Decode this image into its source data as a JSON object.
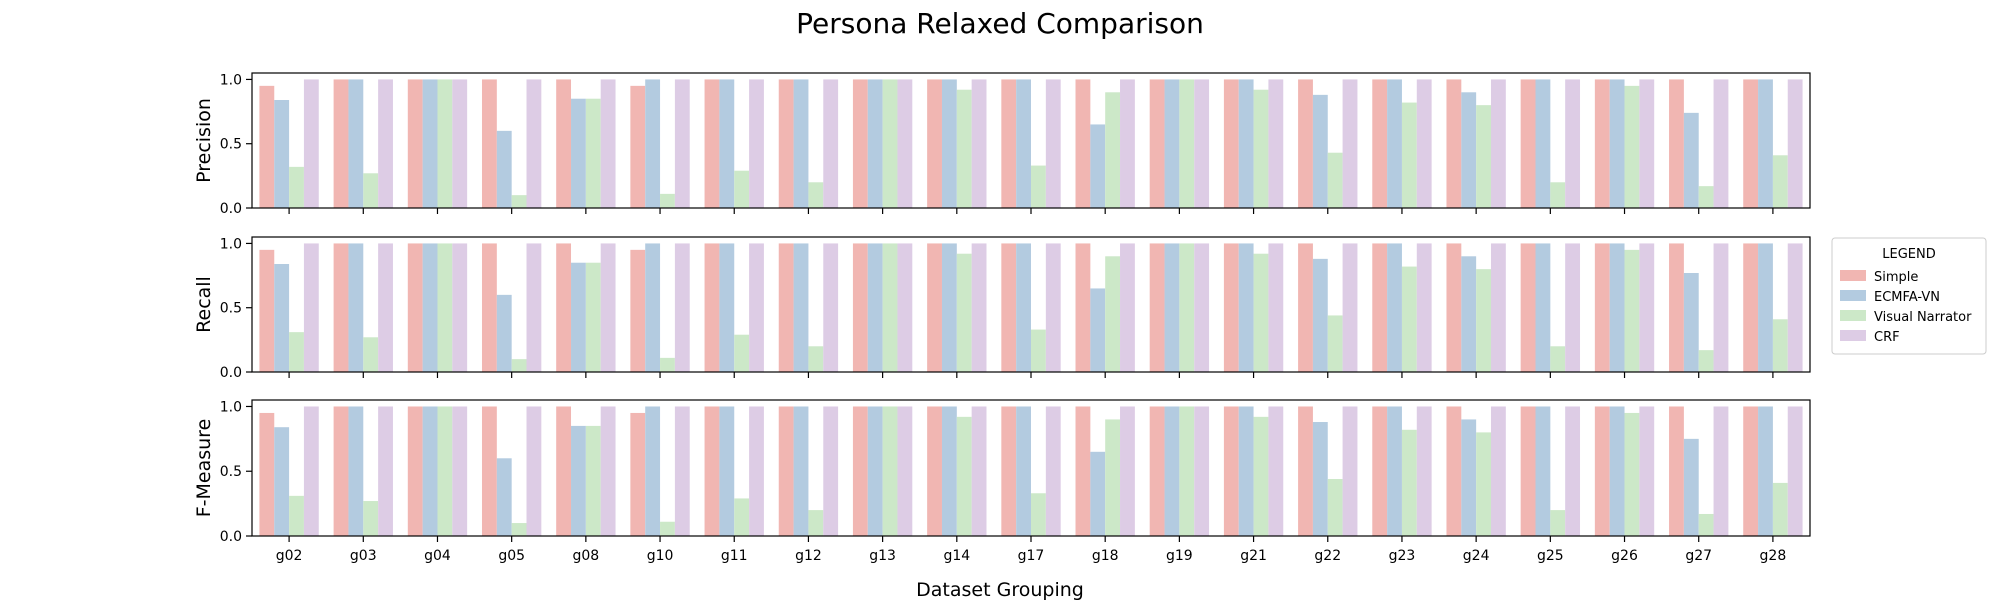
{
  "chart_data": {
    "type": "bar",
    "title": "Persona Relaxed Comparison",
    "xlabel": "Dataset Grouping",
    "categories": [
      "g02",
      "g03",
      "g04",
      "g05",
      "g08",
      "g10",
      "g11",
      "g12",
      "g13",
      "g14",
      "g17",
      "g18",
      "g19",
      "g21",
      "g22",
      "g23",
      "g24",
      "g25",
      "g26",
      "g27",
      "g28"
    ],
    "ylim": [
      0,
      1.05
    ],
    "yticks": [
      "0.0",
      "0.5",
      "1.0"
    ],
    "legend": {
      "title": "LEGEND",
      "placement": "right",
      "labels": [
        "Simple",
        "ECMFA-VN",
        "Visual Narrator",
        "CRF"
      ]
    },
    "colors": [
      "#f1b6b2",
      "#b3cbe0",
      "#cce8c8",
      "#ddcce5"
    ],
    "panels": [
      {
        "ylabel": "Precision",
        "series": [
          {
            "name": "Simple",
            "values": [
              0.95,
              1,
              1,
              1,
              1,
              0.95,
              1,
              1,
              1,
              1,
              1,
              1,
              1,
              1,
              1,
              1,
              1,
              1,
              1,
              1,
              1
            ]
          },
          {
            "name": "ECMFA-VN",
            "values": [
              0.84,
              1,
              1,
              0.6,
              0.85,
              1,
              1,
              1,
              1,
              1,
              1,
              0.65,
              1,
              1,
              0.88,
              1,
              0.9,
              1,
              1,
              0.74,
              1
            ]
          },
          {
            "name": "Visual Narrator",
            "values": [
              0.32,
              0.27,
              1,
              0.1,
              0.85,
              0.11,
              0.29,
              0.2,
              1,
              0.92,
              0.33,
              0.9,
              1,
              0.92,
              0.43,
              0.82,
              0.8,
              0.2,
              0.95,
              0.17,
              0.41
            ]
          },
          {
            "name": "CRF",
            "values": [
              1,
              1,
              1,
              1,
              1,
              1,
              1,
              1,
              1,
              1,
              1,
              1,
              1,
              1,
              1,
              1,
              1,
              1,
              1,
              1,
              1
            ]
          }
        ]
      },
      {
        "ylabel": "Recall",
        "series": [
          {
            "name": "Simple",
            "values": [
              0.95,
              1,
              1,
              1,
              1,
              0.95,
              1,
              1,
              1,
              1,
              1,
              1,
              1,
              1,
              1,
              1,
              1,
              1,
              1,
              1,
              1
            ]
          },
          {
            "name": "ECMFA-VN",
            "values": [
              0.84,
              1,
              1,
              0.6,
              0.85,
              1,
              1,
              1,
              1,
              1,
              1,
              0.65,
              1,
              1,
              0.88,
              1,
              0.9,
              1,
              1,
              0.77,
              1
            ]
          },
          {
            "name": "Visual Narrator",
            "values": [
              0.31,
              0.27,
              1,
              0.1,
              0.85,
              0.11,
              0.29,
              0.2,
              1,
              0.92,
              0.33,
              0.9,
              1,
              0.92,
              0.44,
              0.82,
              0.8,
              0.2,
              0.95,
              0.17,
              0.41
            ]
          },
          {
            "name": "CRF",
            "values": [
              1,
              1,
              1,
              1,
              1,
              1,
              1,
              1,
              1,
              1,
              1,
              1,
              1,
              1,
              1,
              1,
              1,
              1,
              1,
              1,
              1
            ]
          }
        ]
      },
      {
        "ylabel": "F-Measure",
        "series": [
          {
            "name": "Simple",
            "values": [
              0.95,
              1,
              1,
              1,
              1,
              0.95,
              1,
              1,
              1,
              1,
              1,
              1,
              1,
              1,
              1,
              1,
              1,
              1,
              1,
              1,
              1
            ]
          },
          {
            "name": "ECMFA-VN",
            "values": [
              0.84,
              1,
              1,
              0.6,
              0.85,
              1,
              1,
              1,
              1,
              1,
              1,
              0.65,
              1,
              1,
              0.88,
              1,
              0.9,
              1,
              1,
              0.75,
              1
            ]
          },
          {
            "name": "Visual Narrator",
            "values": [
              0.31,
              0.27,
              1,
              0.1,
              0.85,
              0.11,
              0.29,
              0.2,
              1,
              0.92,
              0.33,
              0.9,
              1,
              0.92,
              0.44,
              0.82,
              0.8,
              0.2,
              0.95,
              0.17,
              0.41
            ]
          },
          {
            "name": "CRF",
            "values": [
              1,
              1,
              1,
              1,
              1,
              1,
              1,
              1,
              1,
              1,
              1,
              1,
              1,
              1,
              1,
              1,
              1,
              1,
              1,
              1,
              1
            ]
          }
        ]
      }
    ]
  }
}
